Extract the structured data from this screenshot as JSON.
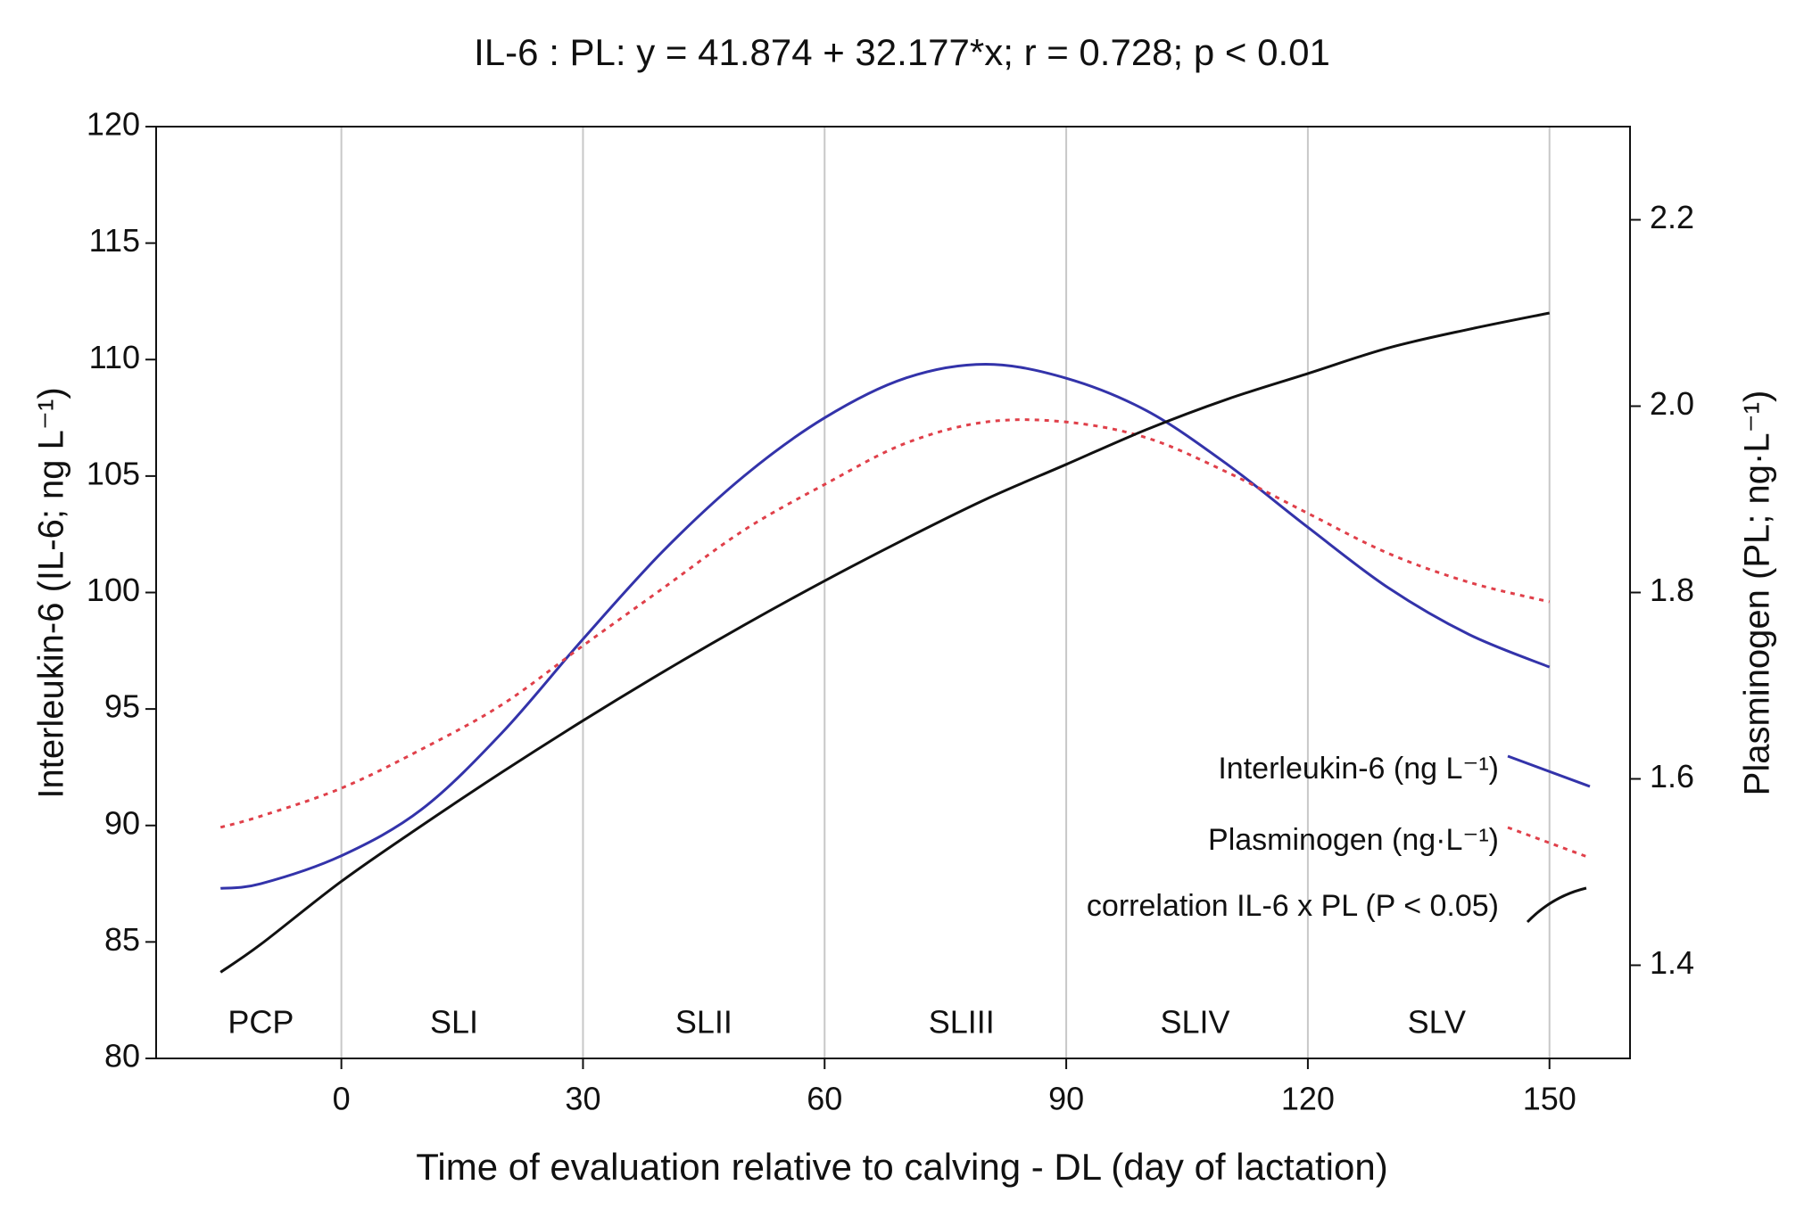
{
  "chart_data": {
    "type": "line",
    "title": "IL-6 : PL: y = 41.874 + 32.177*x; r = 0.728; p < 0.01",
    "x_label": "Time of evaluation relative to calving - DL (day of lactation)",
    "y_label": "Interleukin-6 (IL-6; ng L⁻¹)",
    "y2_label": "Plasminogen (PL; ng·L⁻¹)",
    "x": [
      -15,
      -10,
      0,
      10,
      20,
      30,
      40,
      50,
      60,
      70,
      80,
      90,
      100,
      110,
      120,
      130,
      140,
      150
    ],
    "series": [
      {
        "name": "Interleukin-6 (ng L⁻¹)",
        "color": "#3333aa",
        "style": "solid",
        "values": [
          87.3,
          87.5,
          88.7,
          90.7,
          94,
          98,
          101.8,
          105,
          107.5,
          109.2,
          109.8,
          109.2,
          107.8,
          105.5,
          102.8,
          100.2,
          98.2,
          96.8
        ]
      },
      {
        "name": "Plasminogen (ng·L⁻¹)",
        "color": "#e0404a",
        "style": "dotted",
        "axis": "y2",
        "values": [
          1.548,
          1.56,
          1.59,
          1.632,
          1.68,
          1.743,
          1.805,
          1.867,
          1.916,
          1.96,
          1.983,
          1.983,
          1.966,
          1.929,
          1.885,
          1.842,
          1.811,
          1.79
        ]
      },
      {
        "name": "correlation IL-6 x PL (P < 0.05)",
        "color": "#111111",
        "style": "solid",
        "values": [
          83.7,
          84.9,
          87.6,
          90,
          92.3,
          94.5,
          96.6,
          98.6,
          100.5,
          102.3,
          104,
          105.5,
          107,
          108.3,
          109.4,
          110.5,
          111.3,
          112
        ]
      }
    ],
    "annotations": [
      {
        "text": "PCP",
        "x": -10
      },
      {
        "text": "SLI",
        "x": 14
      },
      {
        "text": "SLII",
        "x": 45
      },
      {
        "text": "SLIII",
        "x": 77
      },
      {
        "text": "SLIV",
        "x": 106
      },
      {
        "text": "SLV",
        "x": 136
      }
    ],
    "xlim": [
      -23,
      160
    ],
    "xticks": [
      0,
      30,
      60,
      90,
      120,
      150
    ],
    "ylim": [
      80,
      120
    ],
    "yticks": [
      80,
      85,
      90,
      95,
      100,
      105,
      110,
      115,
      120
    ],
    "y2lim": [
      1.3,
      2.3
    ],
    "y2ticks": [
      1.4,
      1.6,
      1.8,
      2.0,
      2.2
    ],
    "grid": "x",
    "legend": "lower right"
  }
}
